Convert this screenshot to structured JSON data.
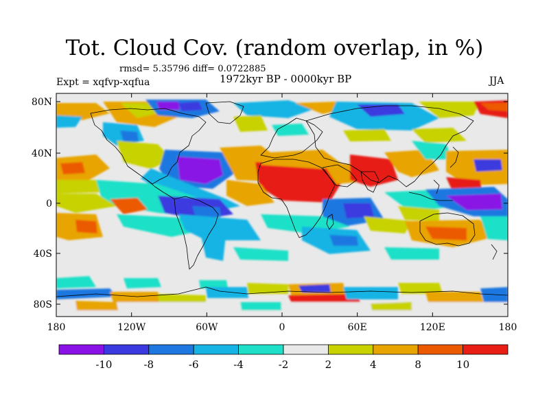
{
  "title": "Tot. Cloud Cov. (random overlap, in %)",
  "stats": "rmsd= 5.35796 diff= 0.0722885",
  "experiment": "Expt = xqfvp-xqfua",
  "period": "1972kyr BP - 0000kyr BP",
  "season": "JJA",
  "y_ticks": [
    "80N",
    "40N",
    "0",
    "40S",
    "80S"
  ],
  "x_ticks": [
    "180",
    "120W",
    "60W",
    "0",
    "60E",
    "120E",
    "180"
  ],
  "colorbar": {
    "labels": [
      "-10",
      "-8",
      "-6",
      "-4",
      "-2",
      "2",
      "4",
      "8",
      "10"
    ],
    "colors": [
      "#8a12e6",
      "#3a3ae0",
      "#1f78e0",
      "#16b4e4",
      "#1ee0c8",
      "#e9e9e9",
      "#c8d200",
      "#e8a400",
      "#ec5a00",
      "#e81e14"
    ]
  },
  "colors": {
    "ocean_neutral": "#e9e9e9",
    "coast": "#000000"
  }
}
